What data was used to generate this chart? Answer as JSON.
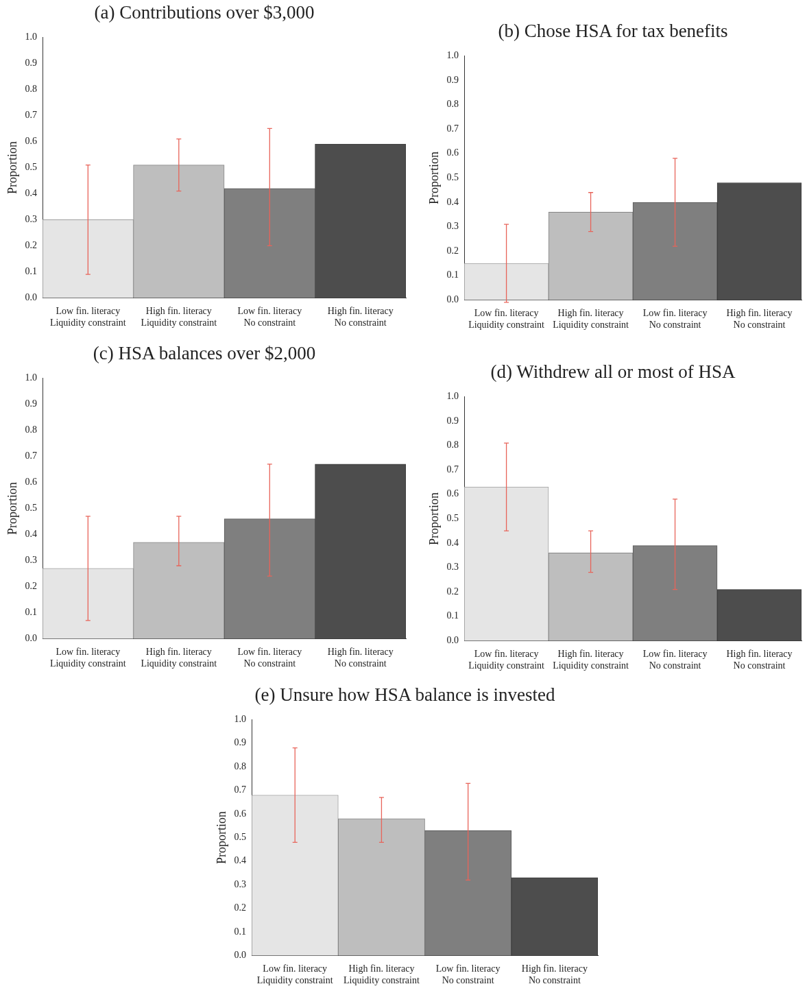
{
  "chart_data": [
    {
      "type": "bar",
      "title": "(a) Contributions over $3,000",
      "ylabel": "Proportion",
      "categories": [
        "Low fin. literacy\nLiquidity constraint",
        "High fin. literacy\nLiquidity constraint",
        "Low fin. literacy\nNo constraint",
        "High fin. literacy\nNo constraint"
      ],
      "values": [
        0.3,
        0.51,
        0.42,
        0.59
      ],
      "colors": [
        "#e5e5e5",
        "#bebebe",
        "#7f7f7f",
        "#4d4d4d"
      ],
      "errors": [
        [
          0.09,
          0.51
        ],
        [
          0.41,
          0.61
        ],
        [
          0.2,
          0.65
        ],
        null
      ],
      "ylim": [
        0,
        1
      ],
      "yticks": [
        {
          "value": 0,
          "label": "0.0"
        },
        {
          "value": 0.1,
          "label": "0.1"
        },
        {
          "value": 0.2,
          "label": "0.2"
        },
        {
          "value": 0.3,
          "label": "0.3"
        },
        {
          "value": 0.4,
          "label": "0.4"
        },
        {
          "value": 0.5,
          "label": "0.5"
        },
        {
          "value": 0.6,
          "label": "0.6"
        },
        {
          "value": 0.7,
          "label": "0.7"
        },
        {
          "value": 0.8,
          "label": "0.8"
        },
        {
          "value": 0.9,
          "label": "0.9"
        },
        {
          "value": 1,
          "label": "1.0"
        }
      ],
      "grid": false,
      "legend": false
    },
    {
      "type": "bar",
      "title": "(b) Chose HSA for tax benefits",
      "ylabel": "Proportion",
      "categories": [
        "Low fin. literacy\nLiquidity constraint",
        "High fin. literacy\nLiquidity constraint",
        "Low fin. literacy\nNo constraint",
        "High fin. literacy\nNo constraint"
      ],
      "values": [
        0.15,
        0.36,
        0.4,
        0.48
      ],
      "colors": [
        "#e5e5e5",
        "#bebebe",
        "#7f7f7f",
        "#4d4d4d"
      ],
      "errors": [
        [
          -0.01,
          0.31
        ],
        [
          0.28,
          0.44
        ],
        [
          0.22,
          0.58
        ],
        null
      ],
      "ylim": [
        0,
        1
      ],
      "yticks": [
        {
          "value": 0,
          "label": "0.0"
        },
        {
          "value": 0.1,
          "label": "0.1"
        },
        {
          "value": 0.2,
          "label": "0.2"
        },
        {
          "value": 0.3,
          "label": "0.3"
        },
        {
          "value": 0.4,
          "label": "0.4"
        },
        {
          "value": 0.5,
          "label": "0.5"
        },
        {
          "value": 0.6,
          "label": "0.6"
        },
        {
          "value": 0.7,
          "label": "0.7"
        },
        {
          "value": 0.8,
          "label": "0.8"
        },
        {
          "value": 0.9,
          "label": "0.9"
        },
        {
          "value": 1,
          "label": "1.0"
        }
      ],
      "grid": false,
      "legend": false
    },
    {
      "type": "bar",
      "title": "(c) HSA balances over $2,000",
      "ylabel": "Proportion",
      "categories": [
        "Low fin. literacy\nLiquidity constraint",
        "High fin. literacy\nLiquidity constraint",
        "Low fin. literacy\nNo constraint",
        "High fin. literacy\nNo constraint"
      ],
      "values": [
        0.27,
        0.37,
        0.46,
        0.67
      ],
      "colors": [
        "#e5e5e5",
        "#bebebe",
        "#7f7f7f",
        "#4d4d4d"
      ],
      "errors": [
        [
          0.07,
          0.47
        ],
        [
          0.28,
          0.47
        ],
        [
          0.24,
          0.67
        ],
        null
      ],
      "ylim": [
        0,
        1
      ],
      "yticks": [
        {
          "value": 0,
          "label": "0.0"
        },
        {
          "value": 0.1,
          "label": "0.1"
        },
        {
          "value": 0.2,
          "label": "0.2"
        },
        {
          "value": 0.3,
          "label": "0.3"
        },
        {
          "value": 0.4,
          "label": "0.4"
        },
        {
          "value": 0.5,
          "label": "0.5"
        },
        {
          "value": 0.6,
          "label": "0.6"
        },
        {
          "value": 0.7,
          "label": "0.7"
        },
        {
          "value": 0.8,
          "label": "0.8"
        },
        {
          "value": 0.9,
          "label": "0.9"
        },
        {
          "value": 1,
          "label": "1.0"
        }
      ],
      "grid": false,
      "legend": false
    },
    {
      "type": "bar",
      "title": "(d) Withdrew all or most of HSA",
      "ylabel": "Proportion",
      "categories": [
        "Low fin. literacy\nLiquidity constraint",
        "High fin. literacy\nLiquidity constraint",
        "Low fin. literacy\nNo constraint",
        "High fin. literacy\nNo constraint"
      ],
      "values": [
        0.63,
        0.36,
        0.39,
        0.21
      ],
      "colors": [
        "#e5e5e5",
        "#bebebe",
        "#7f7f7f",
        "#4d4d4d"
      ],
      "errors": [
        [
          0.45,
          0.81
        ],
        [
          0.28,
          0.45
        ],
        [
          0.21,
          0.58
        ],
        null
      ],
      "ylim": [
        0,
        1
      ],
      "yticks": [
        {
          "value": 0,
          "label": "0.0"
        },
        {
          "value": 0.1,
          "label": "0.1"
        },
        {
          "value": 0.2,
          "label": "0.2"
        },
        {
          "value": 0.3,
          "label": "0.3"
        },
        {
          "value": 0.4,
          "label": "0.4"
        },
        {
          "value": 0.5,
          "label": "0.5"
        },
        {
          "value": 0.6,
          "label": "0.6"
        },
        {
          "value": 0.7,
          "label": "0.7"
        },
        {
          "value": 0.8,
          "label": "0.8"
        },
        {
          "value": 0.9,
          "label": "0.9"
        },
        {
          "value": 1,
          "label": "1.0"
        }
      ],
      "grid": false,
      "legend": false
    },
    {
      "type": "bar",
      "title": "(e) Unsure how HSA balance is invested",
      "ylabel": "Proportion",
      "categories": [
        "Low fin. literacy\nLiquidity constraint",
        "High fin. literacy\nLiquidity constraint",
        "Low fin. literacy\nNo constraint",
        "High fin. literacy\nNo constraint"
      ],
      "values": [
        0.68,
        0.58,
        0.53,
        0.33
      ],
      "colors": [
        "#e5e5e5",
        "#bebebe",
        "#7f7f7f",
        "#4d4d4d"
      ],
      "errors": [
        [
          0.48,
          0.88
        ],
        [
          0.48,
          0.67
        ],
        [
          0.32,
          0.73
        ],
        null
      ],
      "ylim": [
        0,
        1
      ],
      "yticks": [
        {
          "value": 0,
          "label": "0.0"
        },
        {
          "value": 0.1,
          "label": "0.1"
        },
        {
          "value": 0.2,
          "label": "0.2"
        },
        {
          "value": 0.3,
          "label": "0.3"
        },
        {
          "value": 0.4,
          "label": "0.4"
        },
        {
          "value": 0.5,
          "label": "0.5"
        },
        {
          "value": 0.6,
          "label": "0.6"
        },
        {
          "value": 0.7,
          "label": "0.7"
        },
        {
          "value": 0.8,
          "label": "0.8"
        },
        {
          "value": 0.9,
          "label": "0.9"
        },
        {
          "value": 1,
          "label": "1.0"
        }
      ],
      "grid": false,
      "legend": false
    }
  ]
}
